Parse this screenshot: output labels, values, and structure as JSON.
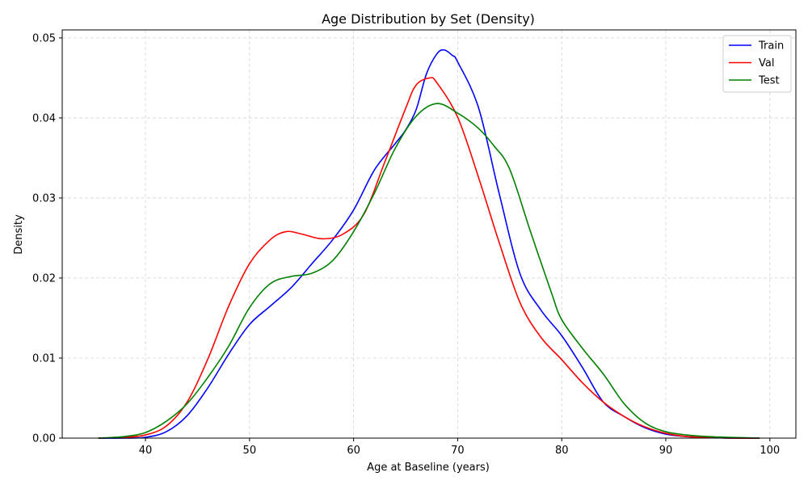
{
  "chart_data": {
    "type": "line",
    "title": "Age Distribution by Set (Density)",
    "xlabel": "Age at Baseline (years)",
    "ylabel": "Density",
    "xlim": [
      32.0,
      102.5
    ],
    "ylim": [
      0.0,
      0.051
    ],
    "xticks": [
      40,
      50,
      60,
      70,
      80,
      90,
      100
    ],
    "yticks": [
      0.0,
      0.01,
      0.02,
      0.03,
      0.04,
      0.05
    ],
    "xtick_labels": [
      "40",
      "50",
      "60",
      "70",
      "80",
      "90",
      "100"
    ],
    "ytick_labels": [
      "0.00",
      "0.01",
      "0.02",
      "0.03",
      "0.04",
      "0.05"
    ],
    "grid": true,
    "legend_position": "top-right",
    "series": [
      {
        "name": "Train",
        "color": "#0000ff",
        "x": [
          35.5,
          38,
          40,
          42,
          44,
          46,
          48,
          50,
          52,
          54,
          56,
          58,
          60,
          62,
          64,
          65,
          66,
          67,
          68,
          68.7,
          69.5,
          70,
          72,
          74,
          76,
          78,
          80,
          82,
          84,
          86,
          88,
          90,
          92,
          94,
          96,
          99
        ],
        "y": [
          0.0,
          0.0,
          0.0001,
          0.0008,
          0.0028,
          0.0063,
          0.0105,
          0.0142,
          0.0165,
          0.0188,
          0.0218,
          0.0248,
          0.0285,
          0.0335,
          0.0368,
          0.0385,
          0.041,
          0.0455,
          0.048,
          0.0485,
          0.0478,
          0.047,
          0.0413,
          0.0305,
          0.0205,
          0.016,
          0.0128,
          0.0088,
          0.0045,
          0.0027,
          0.0013,
          0.0005,
          0.0002,
          0.0001,
          0.0,
          0.0
        ]
      },
      {
        "name": "Val",
        "color": "#ff0000",
        "x": [
          35.5,
          38,
          40,
          42,
          44,
          46,
          48,
          50,
          52,
          53.5,
          55,
          57,
          59,
          61,
          63,
          65,
          66,
          67.3,
          68,
          70,
          72,
          74,
          76,
          78,
          80,
          82,
          84,
          86,
          88,
          90,
          92,
          94,
          96,
          99
        ],
        "y": [
          0.0,
          0.0001,
          0.0004,
          0.0015,
          0.0045,
          0.0099,
          0.0165,
          0.0218,
          0.0248,
          0.0258,
          0.0255,
          0.0249,
          0.0255,
          0.028,
          0.0345,
          0.0412,
          0.0441,
          0.045,
          0.0444,
          0.0401,
          0.0326,
          0.0244,
          0.0169,
          0.0126,
          0.0098,
          0.0069,
          0.0045,
          0.0027,
          0.0014,
          0.0006,
          0.0002,
          0.0001,
          0.0,
          0.0
        ]
      },
      {
        "name": "Test",
        "color": "#008000",
        "x": [
          35.5,
          38,
          40,
          42,
          44,
          46,
          48,
          50,
          52,
          54,
          56,
          58,
          60,
          62,
          64,
          66,
          68,
          70,
          72,
          73.5,
          75,
          77,
          79,
          80,
          82,
          84,
          86,
          88,
          90,
          92,
          94,
          96,
          99
        ],
        "y": [
          0.0,
          0.0002,
          0.0007,
          0.0021,
          0.0043,
          0.0076,
          0.0115,
          0.0163,
          0.0193,
          0.0202,
          0.0206,
          0.0222,
          0.0258,
          0.0306,
          0.0362,
          0.0402,
          0.0418,
          0.0406,
          0.0387,
          0.0365,
          0.0336,
          0.0258,
          0.0182,
          0.0148,
          0.0112,
          0.008,
          0.0043,
          0.0019,
          0.0008,
          0.0004,
          0.0002,
          0.0001,
          0.0
        ]
      }
    ]
  }
}
